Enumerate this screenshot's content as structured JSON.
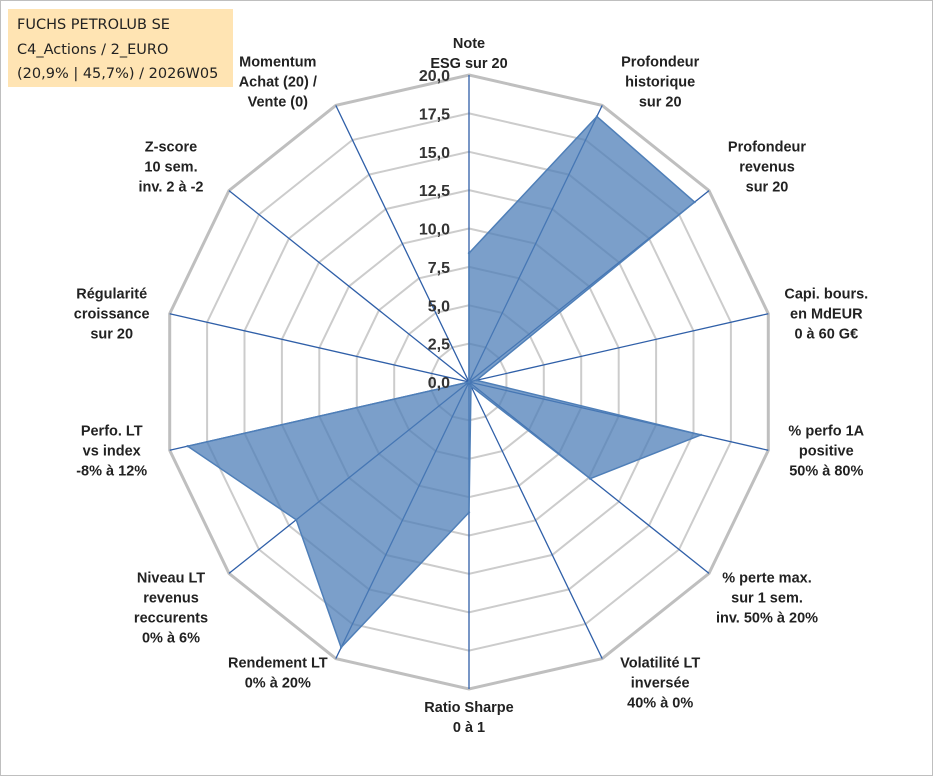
{
  "header": {
    "line1": "FUCHS PETROLUB SE",
    "line2": "C4_Actions / 2_EURO",
    "line3": "(20,9% | 45,7%) / 2026W05"
  },
  "colors": {
    "fill": "#4f7fb8",
    "axis": "#2f5fa8",
    "grid_outer": "#bfbfbf",
    "grid_inner": "#cccccc",
    "title_bg": "#ffe4b3"
  },
  "chart_data": {
    "type": "radar",
    "scale_min": 0,
    "scale_max": 20,
    "ticks": [
      "0,0",
      "2,5",
      "5,0",
      "7,5",
      "10,0",
      "12,5",
      "15,0",
      "17,5",
      "20,0"
    ],
    "tick_values": [
      0,
      2.5,
      5,
      7.5,
      10,
      12.5,
      15,
      17.5,
      20
    ],
    "axes": [
      [
        "Note",
        "ESG sur 20"
      ],
      [
        "Profondeur",
        "historique",
        "sur 20"
      ],
      [
        "Profondeur",
        "revenus",
        "sur 20"
      ],
      [
        "Capi. bours.",
        "en MdEUR",
        "0 à 60 G€"
      ],
      [
        "% perfo 1A",
        "positive",
        "50% à 80%"
      ],
      [
        "% perte max.",
        "sur 1 sem.",
        "inv. 50% à 20%"
      ],
      [
        "Volatilité LT",
        "inversée",
        "40% à 0%"
      ],
      [
        "Ratio Sharpe",
        "0 à 1"
      ],
      [
        "Rendement LT",
        "0% à 20%"
      ],
      [
        "Niveau LT",
        "revenus",
        "reccurents",
        "0% à 6%"
      ],
      [
        "Perfo. LT",
        "vs index",
        "-8% à 12%"
      ],
      [
        "Régularité",
        "croissance",
        "sur 20"
      ],
      [
        "Z-score",
        "10 sem.",
        "inv. 2 à -2"
      ],
      [
        "Momentum",
        "Achat (20) /",
        "Vente (0)"
      ]
    ],
    "series": [
      {
        "values": [
          8.4,
          19.2,
          18.8,
          0.5,
          15.5,
          10.1,
          0.3,
          8.5,
          19.2,
          14.4,
          18.8,
          0.0,
          0.0,
          0.0
        ]
      }
    ],
    "grid": true,
    "legend": "none"
  }
}
